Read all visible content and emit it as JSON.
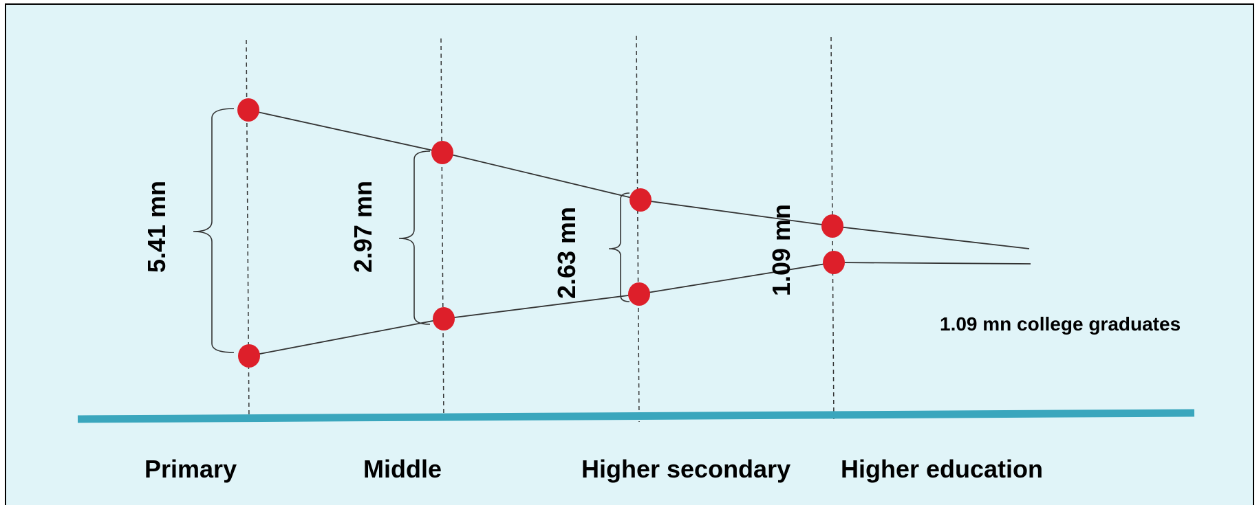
{
  "colors": {
    "panel_background": "#e0f4f8",
    "panel_border": "#000000",
    "baseline": "#3aa6bd",
    "marker": "#dd1f2a",
    "funnel_line": "#333333",
    "guide_line": "#333333",
    "text": "#000000"
  },
  "stages": [
    {
      "label": "Primary",
      "enrolment": "5.41 mn"
    },
    {
      "label": "Middle",
      "enrolment": "2.97 mn"
    },
    {
      "label": "Higher secondary",
      "enrolment": "2.63 mn"
    },
    {
      "label": "Higher education",
      "enrolment": "1.09 mn"
    }
  ],
  "outcome_label": "1.09 mn college graduates"
}
